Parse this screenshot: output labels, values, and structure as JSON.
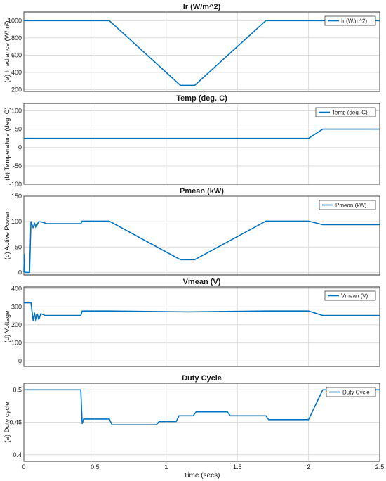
{
  "chart_data": [
    {
      "type": "line",
      "title": "Ir (W/m^2)",
      "ylabel": "(a)  Irradiance  (W/m²)",
      "xlim": [
        0,
        2.5
      ],
      "ylim": [
        180,
        1100
      ],
      "yticks": [
        200,
        400,
        600,
        800,
        1000
      ],
      "grid": true,
      "legend_position": "top-right",
      "series": [
        {
          "name": "Ir (W/m^2)",
          "x": [
            0,
            0.6,
            1.1,
            1.2,
            1.7,
            2.5
          ],
          "y": [
            1000,
            1000,
            250,
            250,
            1000,
            1000
          ]
        }
      ]
    },
    {
      "type": "line",
      "title": "Temp (deg. C)",
      "ylabel": "(b) Temperature (deg. C)",
      "xlim": [
        0,
        2.5
      ],
      "ylim": [
        -100,
        120
      ],
      "yticks": [
        -100,
        -50,
        0,
        50,
        100
      ],
      "grid": true,
      "legend_position": "top-right",
      "series": [
        {
          "name": "Temp (deg. C)",
          "x": [
            0,
            2.0,
            2.1,
            2.5
          ],
          "y": [
            25,
            25,
            50,
            50
          ]
        }
      ]
    },
    {
      "type": "line",
      "title": "Pmean  (kW)",
      "ylabel": "(c) Active Power",
      "xlim": [
        0,
        2.5
      ],
      "ylim": [
        -5,
        150
      ],
      "yticks": [
        0,
        50,
        100,
        150
      ],
      "grid": true,
      "legend_position": "top-right",
      "series": [
        {
          "name": "Pmean  (kW)",
          "x": [
            0,
            0.003,
            0.006,
            0.01,
            0.04,
            0.05,
            0.065,
            0.075,
            0.085,
            0.095,
            0.105,
            0.13,
            0.16,
            0.4,
            0.41,
            0.6,
            1.1,
            1.2,
            1.7,
            2.0,
            2.1,
            2.5
          ],
          "y": [
            0,
            35,
            2,
            0,
            0,
            100,
            88,
            97,
            88,
            95,
            100,
            99,
            96,
            96,
            101,
            101,
            25,
            25,
            101,
            101,
            94,
            94
          ]
        }
      ]
    },
    {
      "type": "line",
      "title": "Vmean (V)",
      "ylabel": "(d) Voltage",
      "xlim": [
        0,
        2.5
      ],
      "ylim": [
        -30,
        410
      ],
      "yticks": [
        0,
        100,
        200,
        300,
        400
      ],
      "grid": true,
      "legend_position": "top-right",
      "series": [
        {
          "name": "Vmean (V)",
          "x": [
            0,
            0.05,
            0.065,
            0.075,
            0.085,
            0.095,
            0.105,
            0.12,
            0.15,
            0.4,
            0.41,
            0.6,
            1.15,
            1.7,
            2.0,
            2.1,
            2.5
          ],
          "y": [
            322,
            322,
            225,
            265,
            220,
            260,
            230,
            262,
            252,
            252,
            277,
            277,
            272,
            277,
            277,
            252,
            252
          ]
        }
      ]
    },
    {
      "type": "line",
      "title": "Duty Cycle",
      "ylabel": "(e) Duty cycle",
      "xlabel": "Time (secs)",
      "xlim": [
        0,
        2.5
      ],
      "xticks": [
        0,
        0.5,
        1,
        1.5,
        2,
        2.5
      ],
      "xticklabels": [
        "0",
        "0.5",
        "1",
        "1.5",
        "2",
        "2.5"
      ],
      "ylim": [
        0.39,
        0.51
      ],
      "yticks": [
        0.4,
        0.45,
        0.5
      ],
      "grid": true,
      "legend_position": "top-right",
      "series": [
        {
          "name": "Duty Cycle",
          "x": [
            0,
            0.4,
            0.41,
            0.42,
            0.6,
            0.62,
            0.93,
            0.95,
            1.07,
            1.09,
            1.19,
            1.21,
            1.43,
            1.45,
            1.7,
            1.72,
            2.0,
            2.1,
            2.5
          ],
          "y": [
            0.5,
            0.5,
            0.448,
            0.455,
            0.455,
            0.446,
            0.446,
            0.451,
            0.451,
            0.46,
            0.46,
            0.466,
            0.466,
            0.46,
            0.46,
            0.454,
            0.454,
            0.5,
            0.5
          ]
        }
      ]
    }
  ]
}
